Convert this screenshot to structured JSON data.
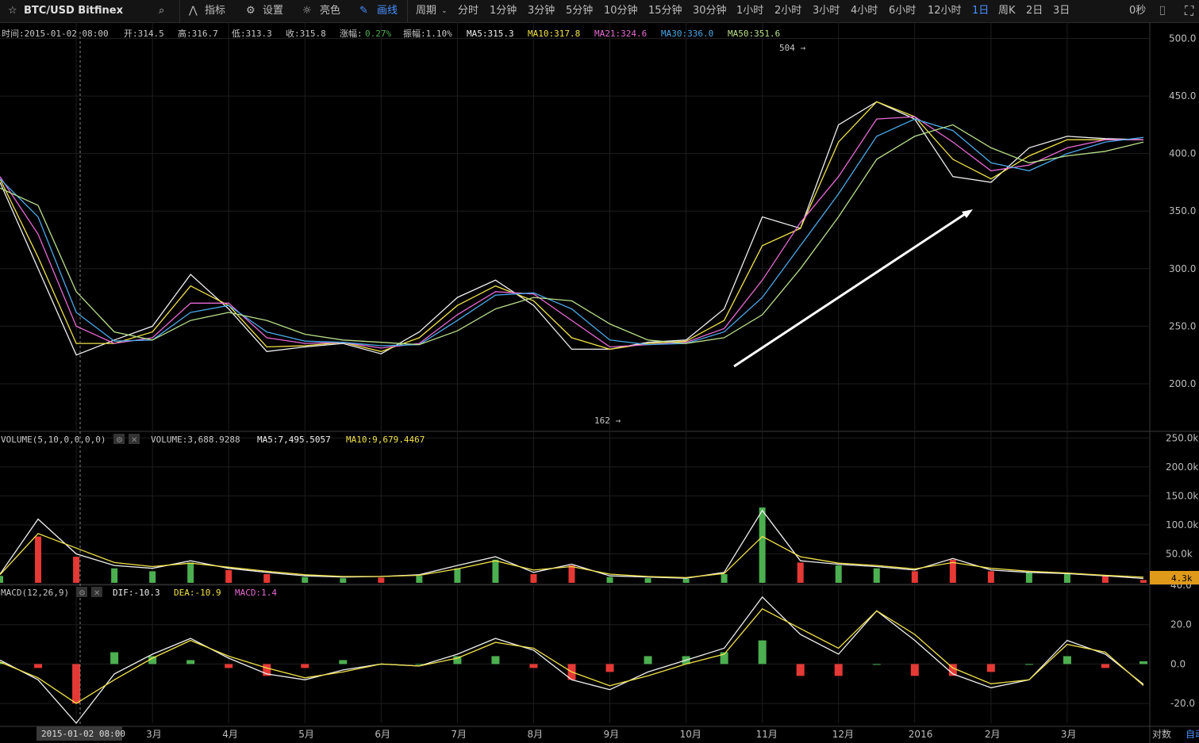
{
  "toolbar": {
    "symbol": "BTC/USD Bitfinex",
    "indicators_label": "指标",
    "settings_label": "设置",
    "theme_label": "亮色",
    "draw_label": "画线",
    "period_label": "周期",
    "intervals": [
      "分时",
      "1分钟",
      "3分钟",
      "5分钟",
      "10分钟",
      "15分钟",
      "30分钟",
      "1小时",
      "2小时",
      "3小时",
      "4小时",
      "6小时",
      "12小时",
      "1日",
      "周K",
      "2日",
      "3日"
    ],
    "active_interval": "1日",
    "timer": "0秒",
    "colors": {
      "active": "#4a90ff",
      "up": "#4caf50",
      "down": "#e53935"
    }
  },
  "info": {
    "time": "时间:2015-01-02 08:00",
    "open": "开:314.5",
    "high": "高:316.7",
    "low": "低:313.3",
    "close": "收:315.8",
    "change_label": "涨幅:",
    "change_value": "0.27%",
    "amplitude": "振幅:1.10%",
    "ma5": "MA5:315.3",
    "ma10": "MA10:317.8",
    "ma21": "MA21:324.6",
    "ma30": "MA30:336.0",
    "ma50": "MA50:351.6"
  },
  "volume_panel": {
    "title": "VOLUME(5,10,0,0,0,0)",
    "volume": "VOLUME:3,688.9288",
    "ma5": "MA5:7,495.5057",
    "ma10": "MA10:9,679.4467",
    "current_badge": "4.3k"
  },
  "macd_panel": {
    "title": "MACD(12,26,9)",
    "dif": "DIF:-10.3",
    "dea": "DEA:-10.9",
    "macd": "MACD:1.4"
  },
  "annotations": {
    "max_label": "504 →",
    "min_label": "162 →"
  },
  "bottom": {
    "crosshair_date": "2015-01-02 08:00",
    "log_label": "对数",
    "auto_label": "自动"
  },
  "chart_data": [
    {
      "type": "line",
      "title": "BTC/USD Bitfinex 1日",
      "x": [
        "2015-01",
        "2015-01-15",
        "2015-02",
        "2015-02-15",
        "2015-03",
        "2015-03-15",
        "2015-04",
        "2015-04-15",
        "2015-05",
        "2015-05-15",
        "2015-06",
        "2015-06-15",
        "2015-07",
        "2015-07-15",
        "2015-08",
        "2015-08-15",
        "2015-09",
        "2015-09-15",
        "2015-10",
        "2015-10-15",
        "2015-11",
        "2015-11-15",
        "2015-12",
        "2015-12-15",
        "2016-01",
        "2016-01-15",
        "2016-02",
        "2016-02-15",
        "2016-03",
        "2016-03-15",
        "2016-03-25"
      ],
      "x_tick_labels": [
        "2月",
        "3月",
        "4月",
        "5月",
        "6月",
        "7月",
        "8月",
        "9月",
        "10月",
        "11月",
        "12月",
        "2016",
        "2月",
        "3月"
      ],
      "series": [
        {
          "name": "MA5",
          "color": "#f0f0f0",
          "values": [
            375,
            300,
            225,
            238,
            250,
            295,
            265,
            228,
            232,
            235,
            226,
            245,
            275,
            290,
            268,
            230,
            230,
            236,
            238,
            265,
            345,
            335,
            425,
            445,
            430,
            380,
            375,
            405,
            415,
            413,
            412
          ]
        },
        {
          "name": "MA10",
          "color": "#f2e24a",
          "values": [
            378,
            310,
            235,
            235,
            245,
            285,
            268,
            232,
            233,
            236,
            228,
            240,
            268,
            285,
            272,
            240,
            230,
            235,
            237,
            255,
            320,
            335,
            410,
            445,
            432,
            395,
            378,
            398,
            412,
            412,
            412
          ]
        },
        {
          "name": "MA21",
          "color": "#e86ad6",
          "values": [
            380,
            330,
            250,
            235,
            240,
            270,
            270,
            240,
            235,
            236,
            231,
            235,
            260,
            280,
            278,
            255,
            232,
            234,
            236,
            248,
            290,
            340,
            380,
            430,
            432,
            410,
            385,
            390,
            405,
            412,
            412
          ]
        },
        {
          "name": "MA30",
          "color": "#4aa8e8",
          "values": [
            378,
            345,
            262,
            237,
            238,
            262,
            268,
            245,
            237,
            236,
            233,
            234,
            255,
            277,
            279,
            265,
            238,
            234,
            235,
            245,
            275,
            320,
            365,
            415,
            430,
            420,
            392,
            385,
            400,
            410,
            414
          ]
        },
        {
          "name": "MA50",
          "color": "#b8e08a",
          "values": [
            370,
            355,
            280,
            245,
            238,
            255,
            262,
            255,
            243,
            238,
            236,
            234,
            246,
            265,
            275,
            272,
            252,
            238,
            235,
            240,
            260,
            300,
            345,
            395,
            415,
            425,
            405,
            392,
            398,
            402,
            410
          ]
        }
      ],
      "ylim": [
        160,
        510
      ],
      "yticks": [
        200,
        250,
        300,
        350,
        400,
        450,
        500
      ],
      "annotations": [
        {
          "text": "504",
          "value": 504,
          "date": "2015-11-04"
        },
        {
          "text": "162",
          "value": 162,
          "date": "2015-08-19"
        }
      ],
      "grid": true
    },
    {
      "type": "bar",
      "title": "VOLUME",
      "x": [
        "2015-01",
        "2015-01-15",
        "2015-02",
        "2015-02-15",
        "2015-03",
        "2015-03-15",
        "2015-04",
        "2015-04-15",
        "2015-05",
        "2015-05-15",
        "2015-06",
        "2015-06-15",
        "2015-07",
        "2015-07-15",
        "2015-08",
        "2015-08-15",
        "2015-09",
        "2015-09-15",
        "2015-10",
        "2015-10-15",
        "2015-11",
        "2015-11-15",
        "2015-12",
        "2015-12-15",
        "2016-01",
        "2016-01-15",
        "2016-02",
        "2016-02-15",
        "2016-03",
        "2016-03-15",
        "2016-03-25"
      ],
      "series": [
        {
          "name": "VOLUME",
          "values": [
            12000,
            80000,
            45000,
            25000,
            20000,
            35000,
            22000,
            15000,
            10000,
            8000,
            9000,
            12000,
            25000,
            40000,
            15000,
            30000,
            10000,
            8000,
            7000,
            15000,
            130000,
            35000,
            30000,
            25000,
            20000,
            40000,
            20000,
            18000,
            15000,
            12000,
            5000
          ]
        },
        {
          "name": "MA5",
          "color": "#f0f0f0",
          "values": [
            15000,
            110000,
            50000,
            30000,
            25000,
            38000,
            25000,
            18000,
            12000,
            10000,
            11000,
            14000,
            30000,
            45000,
            18000,
            32000,
            12000,
            10000,
            8000,
            18000,
            125000,
            38000,
            32000,
            28000,
            22000,
            42000,
            22000,
            18000,
            16000,
            12000,
            7500
          ]
        },
        {
          "name": "MA10",
          "color": "#f2e24a",
          "values": [
            14000,
            85000,
            60000,
            35000,
            28000,
            34000,
            27000,
            20000,
            14000,
            11000,
            11000,
            13000,
            24000,
            38000,
            22000,
            28000,
            15000,
            11000,
            9000,
            16000,
            80000,
            45000,
            34000,
            30000,
            24000,
            35000,
            25000,
            20000,
            17000,
            13000,
            9700
          ]
        }
      ],
      "ylim": [
        0,
        260000
      ],
      "yticks_labels": [
        "50.0k",
        "100.0k",
        "150.0k",
        "200.0k",
        "250.0k"
      ]
    },
    {
      "type": "line",
      "title": "MACD(12,26,9)",
      "x": [
        "2015-01",
        "2015-01-15",
        "2015-02",
        "2015-02-15",
        "2015-03",
        "2015-03-15",
        "2015-04",
        "2015-04-15",
        "2015-05",
        "2015-05-15",
        "2015-06",
        "2015-06-15",
        "2015-07",
        "2015-07-15",
        "2015-08",
        "2015-08-15",
        "2015-09",
        "2015-09-15",
        "2015-10",
        "2015-10-15",
        "2015-11",
        "2015-11-15",
        "2015-12",
        "2015-12-15",
        "2016-01",
        "2016-01-15",
        "2016-02",
        "2016-02-15",
        "2016-03",
        "2016-03-15",
        "2016-03-25"
      ],
      "series": [
        {
          "name": "DIF",
          "color": "#f0f0f0",
          "values": [
            2,
            -8,
            -30,
            -5,
            5,
            13,
            3,
            -5,
            -8,
            -3,
            0,
            -1,
            5,
            13,
            7,
            -8,
            -13,
            -4,
            2,
            8,
            34,
            15,
            5,
            27,
            12,
            -5,
            -12,
            -8,
            12,
            5,
            -10.3
          ]
        },
        {
          "name": "DEA",
          "color": "#f2e24a",
          "values": [
            1,
            -7,
            -20,
            -8,
            3,
            12,
            4,
            -2,
            -7,
            -4,
            0,
            -1,
            3,
            11,
            8,
            -4,
            -11,
            -6,
            0,
            5,
            28,
            18,
            8,
            27,
            15,
            -2,
            -10,
            -8,
            10,
            6,
            -10.9
          ]
        },
        {
          "name": "MACD",
          "color": "#e86ad6",
          "values": [
            1,
            -2,
            -20,
            6,
            4,
            2,
            -2,
            -6,
            -2,
            2,
            0,
            0,
            4,
            4,
            -2,
            -8,
            -4,
            4,
            4,
            6,
            12,
            -6,
            -6,
            0,
            -6,
            -6,
            -4,
            0,
            4,
            -2,
            1.4
          ]
        }
      ],
      "ylim": [
        -30,
        40
      ],
      "yticks": [
        -20,
        0,
        20,
        40
      ]
    }
  ]
}
